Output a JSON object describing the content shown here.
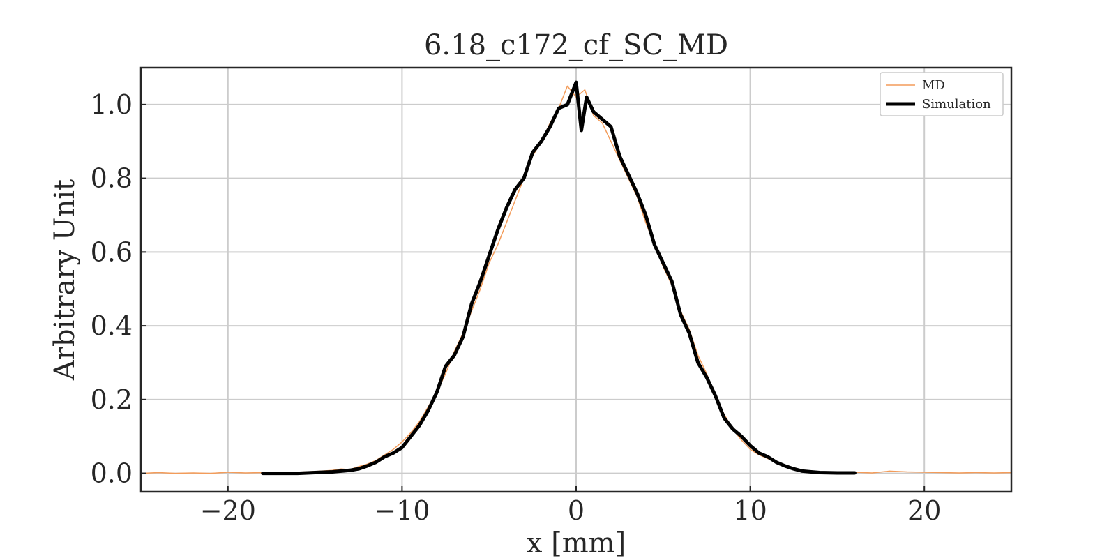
{
  "chart_data": {
    "type": "line",
    "title": "6.18_c172_cf_SC_MD",
    "xlabel": "x [mm]",
    "ylabel": "Arbitrary Unit",
    "xlim": [
      -25,
      25
    ],
    "ylim": [
      -0.05,
      1.1
    ],
    "xticks": [
      -20,
      -10,
      0,
      10,
      20
    ],
    "xtick_labels": [
      "−20",
      "−10",
      "0",
      "10",
      "20"
    ],
    "yticks": [
      0.0,
      0.2,
      0.4,
      0.6,
      0.8,
      1.0
    ],
    "ytick_labels": [
      "0.0",
      "0.2",
      "0.4",
      "0.6",
      "0.8",
      "1.0"
    ],
    "grid": true,
    "legend_position": "top-right",
    "colors": {
      "md": "#f39c5a",
      "simulation": "#000000",
      "grid": "#cccccc",
      "frame": "#262626"
    },
    "series": [
      {
        "name": "MD",
        "x": [
          -25,
          -24,
          -23,
          -22,
          -21,
          -20,
          -19,
          -18,
          -17,
          -16,
          -15,
          -14,
          -13.5,
          -13,
          -12.5,
          -12,
          -11.5,
          -11,
          -10.5,
          -10,
          -9.5,
          -9,
          -8.5,
          -8,
          -7.5,
          -7,
          -6.5,
          -6,
          -5.5,
          -5,
          -4.5,
          -4,
          -3.5,
          -3,
          -2.5,
          -2,
          -1.5,
          -1,
          -0.5,
          0,
          0.5,
          1,
          1.5,
          2,
          2.5,
          3,
          3.5,
          4,
          4.5,
          5,
          5.5,
          6,
          6.5,
          7,
          7.5,
          8,
          8.5,
          9,
          9.5,
          10,
          10.5,
          11,
          11.5,
          12,
          12.5,
          13,
          13.5,
          14,
          15,
          16,
          17,
          18,
          19,
          20,
          21,
          22,
          23,
          24,
          25
        ],
        "y": [
          0.0,
          0.002,
          0.0,
          0.001,
          0.0,
          0.003,
          0.001,
          0.002,
          0.001,
          0.003,
          0.005,
          0.008,
          0.012,
          0.01,
          0.018,
          0.025,
          0.035,
          0.05,
          0.065,
          0.085,
          0.11,
          0.14,
          0.18,
          0.22,
          0.27,
          0.33,
          0.38,
          0.44,
          0.5,
          0.57,
          0.62,
          0.68,
          0.74,
          0.8,
          0.86,
          0.9,
          0.95,
          0.99,
          1.05,
          1.02,
          1.04,
          0.97,
          0.95,
          0.9,
          0.85,
          0.8,
          0.75,
          0.68,
          0.62,
          0.56,
          0.51,
          0.44,
          0.39,
          0.32,
          0.27,
          0.21,
          0.16,
          0.12,
          0.09,
          0.065,
          0.05,
          0.04,
          0.03,
          0.02,
          0.012,
          0.008,
          0.005,
          0.004,
          0.002,
          0.003,
          0.001,
          0.006,
          0.004,
          0.003,
          0.002,
          0.001,
          0.002,
          0.001,
          0.002
        ]
      },
      {
        "name": "Simulation",
        "x": [
          -18,
          -17,
          -16,
          -15,
          -14,
          -13.5,
          -13,
          -12.5,
          -12,
          -11.5,
          -11,
          -10.5,
          -10,
          -9.5,
          -9,
          -8.5,
          -8,
          -7.5,
          -7,
          -6.5,
          -6,
          -5.5,
          -5,
          -4.5,
          -4,
          -3.5,
          -3,
          -2.5,
          -2,
          -1.5,
          -1,
          -0.5,
          0,
          0.3,
          0.6,
          1,
          1.5,
          2,
          2.5,
          3,
          3.5,
          4,
          4.5,
          5,
          5.5,
          6,
          6.5,
          7,
          7.5,
          8,
          8.5,
          9,
          9.5,
          10,
          10.5,
          11,
          11.5,
          12,
          12.5,
          13,
          13.5,
          14,
          15,
          16
        ],
        "y": [
          0.0,
          0.0,
          0.0,
          0.002,
          0.004,
          0.006,
          0.008,
          0.012,
          0.02,
          0.03,
          0.045,
          0.055,
          0.07,
          0.1,
          0.13,
          0.17,
          0.22,
          0.29,
          0.32,
          0.37,
          0.46,
          0.52,
          0.59,
          0.66,
          0.72,
          0.77,
          0.8,
          0.87,
          0.9,
          0.94,
          0.99,
          1.0,
          1.06,
          0.93,
          1.02,
          0.98,
          0.96,
          0.94,
          0.86,
          0.81,
          0.76,
          0.7,
          0.62,
          0.57,
          0.52,
          0.43,
          0.38,
          0.3,
          0.26,
          0.21,
          0.15,
          0.12,
          0.1,
          0.075,
          0.055,
          0.045,
          0.03,
          0.02,
          0.012,
          0.006,
          0.004,
          0.002,
          0.001,
          0.001
        ]
      }
    ]
  }
}
